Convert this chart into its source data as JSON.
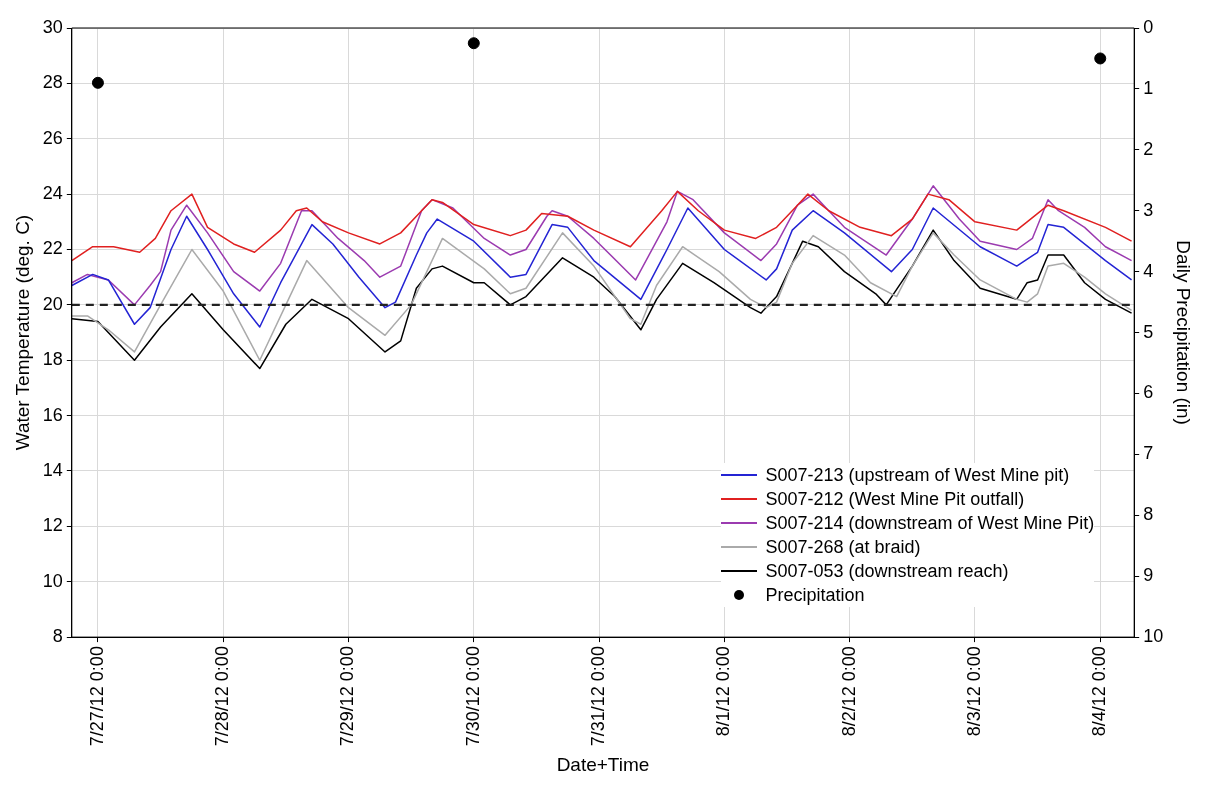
{
  "chart_data": {
    "type": "line",
    "xlabel": "Date+Time",
    "ylabel": "Water Temperature (deg. C)",
    "y2label": "Daily Precipitation (in)",
    "xlim": [
      "--07-26T19:00",
      "--08-04T06:30"
    ],
    "xticks": [
      {
        "value": "--07-27T00:00",
        "label": "7/27/12 0:00"
      },
      {
        "value": "--07-28T00:00",
        "label": "7/28/12 0:00"
      },
      {
        "value": "--07-29T00:00",
        "label": "7/29/12 0:00"
      },
      {
        "value": "--07-30T00:00",
        "label": "7/30/12 0:00"
      },
      {
        "value": "--07-31T00:00",
        "label": "7/31/12 0:00"
      },
      {
        "value": "--08-01T00:00",
        "label": "8/1/12 0:00"
      },
      {
        "value": "--08-02T00:00",
        "label": "8/2/12 0:00"
      },
      {
        "value": "--08-03T00:00",
        "label": "8/3/12 0:00"
      },
      {
        "value": "--08-04T00:00",
        "label": "8/4/12 0:00"
      }
    ],
    "ylim": [
      8,
      30
    ],
    "yticks": [
      8,
      10,
      12,
      14,
      16,
      18,
      20,
      22,
      24,
      26,
      28,
      30
    ],
    "y2lim": [
      10,
      0
    ],
    "y2ticks": [
      0,
      1,
      2,
      3,
      4,
      5,
      6,
      7,
      8,
      9,
      10
    ],
    "grid": true,
    "legend": "bottom right",
    "marker": "none",
    "ref_lines": [
      {
        "axis": "y",
        "value": 20,
        "color": "#222222",
        "line_style": "dashed"
      }
    ],
    "series": [
      {
        "name": "S007-213 (upstream of West Mine pit)",
        "color": "#2424d4",
        "x": [
          "--07-26T19:00",
          "--07-26T23:00",
          "--07-27T02:00",
          "--07-27T07:00",
          "--07-27T10:00",
          "--07-27T14:00",
          "--07-27T17:00",
          "--07-27T21:00",
          "--07-28T02:00",
          "--07-28T07:00",
          "--07-28T11:00",
          "--07-28T17:00",
          "--07-28T21:00",
          "--07-29T02:00",
          "--07-29T07:00",
          "--07-29T09:00",
          "--07-29T13:00",
          "--07-29T15:00",
          "--07-29T17:00",
          "--07-30T00:00",
          "--07-30T07:00",
          "--07-30T10:00",
          "--07-30T15:00",
          "--07-30T18:00",
          "--07-30T23:00",
          "--07-31T08:00",
          "--07-31T13:00",
          "--07-31T17:00",
          "--08-01T00:00",
          "--08-01T08:00",
          "--08-01T10:00",
          "--08-01T13:00",
          "--08-01T17:00",
          "--08-01T23:00",
          "--08-02T08:00",
          "--08-02T12:00",
          "--08-02T16:00",
          "--08-03T01:00",
          "--08-03T08:00",
          "--08-03T12:00",
          "--08-03T14:00",
          "--08-03T17:00",
          "--08-04T01:00",
          "--08-04T06:00"
        ],
        "values": [
          20.7,
          21.1,
          20.9,
          19.3,
          19.9,
          22.0,
          23.2,
          22.0,
          20.4,
          19.2,
          20.8,
          22.9,
          22.2,
          21.0,
          19.9,
          20.1,
          21.8,
          22.6,
          23.1,
          22.3,
          21.0,
          21.1,
          22.9,
          22.8,
          21.6,
          20.2,
          22.0,
          23.5,
          22.0,
          20.9,
          21.3,
          22.7,
          23.4,
          22.6,
          21.2,
          22.0,
          23.5,
          22.1,
          21.4,
          21.9,
          22.9,
          22.8,
          21.6,
          20.9
        ]
      },
      {
        "name": "S007-212 (West Mine Pit outfall)",
        "color": "#e02020",
        "x": [
          "--07-26T19:00",
          "--07-26T23:00",
          "--07-27T03:00",
          "--07-27T08:00",
          "--07-27T11:00",
          "--07-27T14:00",
          "--07-27T18:00",
          "--07-27T21:00",
          "--07-28T02:00",
          "--07-28T06:00",
          "--07-28T11:00",
          "--07-28T14:00",
          "--07-28T16:00",
          "--07-28T19:00",
          "--07-29T00:00",
          "--07-29T06:00",
          "--07-29T10:00",
          "--07-29T14:00",
          "--07-29T16:00",
          "--07-29T18:00",
          "--07-30T00:00",
          "--07-30T07:00",
          "--07-30T10:00",
          "--07-30T13:00",
          "--07-30T18:00",
          "--07-30T23:00",
          "--07-31T06:00",
          "--07-31T12:00",
          "--07-31T15:00",
          "--07-31T19:00",
          "--08-01T00:00",
          "--08-01T06:00",
          "--08-01T10:00",
          "--08-01T14:00",
          "--08-01T16:00",
          "--08-01T20:00",
          "--08-02T02:00",
          "--08-02T08:00",
          "--08-02T12:00",
          "--08-02T15:00",
          "--08-02T19:00",
          "--08-03T00:00",
          "--08-03T08:00",
          "--08-03T10:00",
          "--08-03T14:00",
          "--08-03T17:00",
          "--08-04T01:00",
          "--08-04T06:00"
        ],
        "values": [
          21.6,
          22.1,
          22.1,
          21.9,
          22.4,
          23.4,
          24.0,
          22.8,
          22.2,
          21.9,
          22.7,
          23.4,
          23.5,
          23.0,
          22.6,
          22.2,
          22.6,
          23.4,
          23.8,
          23.7,
          22.9,
          22.5,
          22.7,
          23.3,
          23.2,
          22.7,
          22.1,
          23.4,
          24.1,
          23.4,
          22.7,
          22.4,
          22.8,
          23.6,
          24.0,
          23.4,
          22.8,
          22.5,
          23.1,
          24.0,
          23.8,
          23.0,
          22.7,
          23.0,
          23.6,
          23.4,
          22.8,
          22.3
        ]
      },
      {
        "name": "S007-214 (downstream of West Mine Pit)",
        "color": "#9b3bb0",
        "x": [
          "--07-26T19:00",
          "--07-26T22:00",
          "--07-27T02:00",
          "--07-27T07:00",
          "--07-27T10:00",
          "--07-27T12:00",
          "--07-27T14:00",
          "--07-27T17:00",
          "--07-27T21:00",
          "--07-28T02:00",
          "--07-28T07:00",
          "--07-28T11:00",
          "--07-28T15:00",
          "--07-28T17:00",
          "--07-28T22:00",
          "--07-29T03:00",
          "--07-29T06:00",
          "--07-29T10:00",
          "--07-29T14:00",
          "--07-29T16:00",
          "--07-29T20:00",
          "--07-30T02:00",
          "--07-30T07:00",
          "--07-30T10:00",
          "--07-30T14:00",
          "--07-30T15:00",
          "--07-30T18:00",
          "--07-30T23:00",
          "--07-31T07:00",
          "--07-31T13:00",
          "--07-31T15:00",
          "--07-31T18:00",
          "--08-01T00:00",
          "--08-01T07:00",
          "--08-01T10:00",
          "--08-01T14:00",
          "--08-01T17:00",
          "--08-01T19:00",
          "--08-01T23:00",
          "--08-02T07:00",
          "--08-02T12:00",
          "--08-02T16:00",
          "--08-02T21:00",
          "--08-03T01:00",
          "--08-03T08:00",
          "--08-03T11:00",
          "--08-03T14:00",
          "--08-03T16:00",
          "--08-03T21:00",
          "--08-04T01:00",
          "--08-04T06:00"
        ],
        "values": [
          20.8,
          21.1,
          20.9,
          20.0,
          20.7,
          21.2,
          22.7,
          23.6,
          22.6,
          21.2,
          20.5,
          21.5,
          23.4,
          23.4,
          22.4,
          21.6,
          21.0,
          21.4,
          23.4,
          23.8,
          23.5,
          22.4,
          21.8,
          22.0,
          23.2,
          23.4,
          23.2,
          22.4,
          20.9,
          23.0,
          24.1,
          23.8,
          22.6,
          21.6,
          22.2,
          23.6,
          24.0,
          23.6,
          22.8,
          21.8,
          23.1,
          24.3,
          23.1,
          22.3,
          22.0,
          22.4,
          23.8,
          23.4,
          22.8,
          22.1,
          21.6
        ]
      },
      {
        "name": "S007-268 (at braid)",
        "color": "#aaaaaa",
        "x": [
          "--07-26T19:00",
          "--07-26T22:00",
          "--07-27T02:00",
          "--07-27T07:00",
          "--07-27T12:00",
          "--07-27T18:00",
          "--07-28T00:00",
          "--07-28T07:00",
          "--07-28T12:00",
          "--07-28T16:00",
          "--07-29T00:00",
          "--07-29T07:00",
          "--07-29T12:00",
          "--07-29T18:00",
          "--07-30T02:00",
          "--07-30T07:00",
          "--07-30T10:00",
          "--07-30T17:00",
          "--07-30T23:00",
          "--07-31T06:00",
          "--07-31T08:00",
          "--07-31T11:00",
          "--07-31T16:00",
          "--07-31T23:00",
          "--08-01T05:00",
          "--08-01T08:00",
          "--08-01T10:00",
          "--08-01T13:00",
          "--08-01T17:00",
          "--08-01T23:00",
          "--08-02T04:00",
          "--08-02T09:00",
          "--08-02T12:00",
          "--08-02T16:00",
          "--08-02T20:00",
          "--08-03T01:00",
          "--08-03T08:00",
          "--08-03T10:00",
          "--08-03T12:00",
          "--08-03T14:00",
          "--08-03T17:00",
          "--08-03T21:00",
          "--08-04T01:00",
          "--08-04T06:00"
        ],
        "values": [
          19.6,
          19.6,
          19.1,
          18.3,
          20.0,
          22.0,
          20.5,
          18.0,
          20.0,
          21.6,
          19.9,
          18.9,
          20.0,
          22.4,
          21.3,
          20.4,
          20.6,
          22.6,
          21.4,
          19.5,
          19.3,
          20.7,
          22.1,
          21.2,
          20.2,
          19.9,
          20.1,
          21.5,
          22.5,
          21.8,
          20.8,
          20.3,
          21.4,
          22.6,
          21.8,
          20.9,
          20.2,
          20.1,
          20.4,
          21.4,
          21.5,
          21.0,
          20.4,
          19.8
        ]
      },
      {
        "name": "S007-053 (downstream reach)",
        "color": "#000000",
        "x": [
          "--07-26T19:00",
          "--07-27T00:00",
          "--07-27T07:00",
          "--07-27T12:00",
          "--07-27T18:00",
          "--07-28T00:00",
          "--07-28T07:00",
          "--07-28T12:00",
          "--07-28T17:00",
          "--07-29T00:00",
          "--07-29T07:00",
          "--07-29T10:00",
          "--07-29T13:00",
          "--07-29T16:00",
          "--07-29T18:00",
          "--07-30T00:00",
          "--07-30T02:00",
          "--07-30T07:00",
          "--07-30T10:00",
          "--07-30T17:00",
          "--07-30T23:00",
          "--07-31T03:00",
          "--07-31T08:00",
          "--07-31T11:00",
          "--07-31T16:00",
          "--07-31T22:00",
          "--08-01T05:00",
          "--08-01T07:00",
          "--08-01T10:00",
          "--08-01T15:00",
          "--08-01T18:00",
          "--08-01T23:00",
          "--08-02T05:00",
          "--08-02T07:00",
          "--08-02T12:00",
          "--08-02T16:00",
          "--08-02T20:00",
          "--08-03T01:00",
          "--08-03T08:00",
          "--08-03T10:00",
          "--08-03T12:00",
          "--08-03T14:00",
          "--08-03T17:00",
          "--08-03T21:00",
          "--08-04T01:00",
          "--08-04T06:00"
        ],
        "values": [
          19.5,
          19.4,
          18.0,
          19.2,
          20.4,
          19.1,
          17.7,
          19.3,
          20.2,
          19.5,
          18.3,
          18.7,
          20.6,
          21.3,
          21.4,
          20.8,
          20.8,
          20.0,
          20.3,
          21.7,
          21.0,
          20.3,
          19.1,
          20.2,
          21.5,
          20.8,
          19.9,
          19.7,
          20.3,
          22.3,
          22.1,
          21.2,
          20.4,
          20.0,
          21.4,
          22.7,
          21.6,
          20.6,
          20.2,
          20.8,
          20.9,
          21.8,
          21.8,
          20.8,
          20.2,
          19.7
        ]
      },
      {
        "name": "Precipitation",
        "type": "scatter",
        "axis": "y2",
        "marker": "circle",
        "color": "#000000",
        "x": [
          "--07-27T00:00",
          "--07-30T00:00",
          "--08-04T00:00"
        ],
        "values": [
          0.9,
          0.25,
          0.5
        ]
      }
    ]
  }
}
